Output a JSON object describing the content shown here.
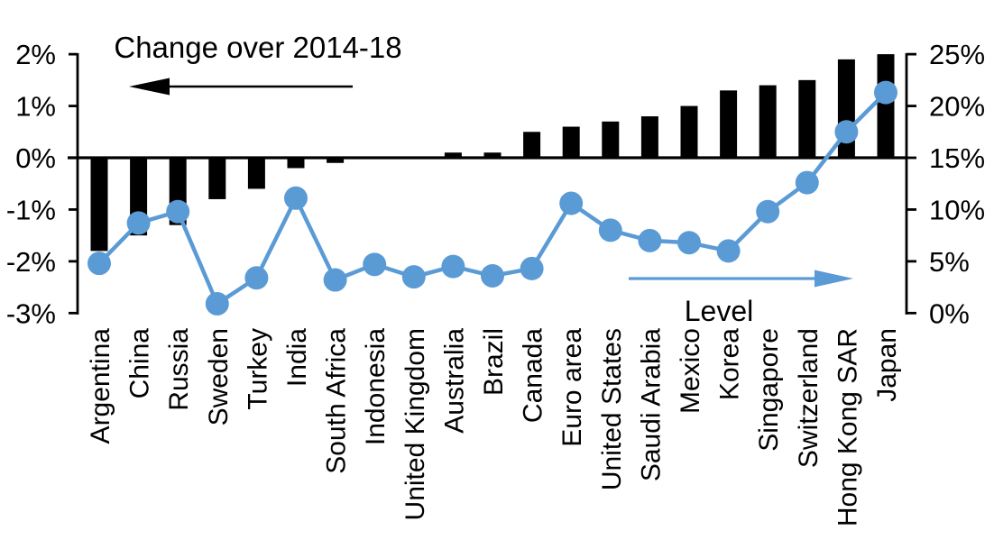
{
  "chart_data": {
    "type": "bar_line_combo",
    "title": "",
    "categories": [
      "Argentina",
      "China",
      "Russia",
      "Sweden",
      "Turkey",
      "India",
      "South Africa",
      "Indonesia",
      "United Kingdom",
      "Australia",
      "Brazil",
      "Canada",
      "Euro area",
      "United States",
      "Saudi Arabia",
      "Mexico",
      "Korea",
      "Singapore",
      "Switzerland",
      "Hong Kong SAR",
      "Japan"
    ],
    "series": [
      {
        "name": "Change over 2014-18",
        "type": "bar",
        "axis": "left",
        "color": "#000000",
        "unit": "%",
        "values": [
          -1.8,
          -1.5,
          -1.3,
          -0.8,
          -0.6,
          -0.2,
          -0.1,
          0,
          0,
          0.1,
          0.1,
          0.5,
          0.6,
          0.7,
          0.8,
          1.0,
          1.3,
          1.4,
          1.5,
          1.9,
          2.0
        ]
      },
      {
        "name": "Level",
        "type": "line",
        "axis": "right",
        "color": "#5B9BD5",
        "unit": "%",
        "marker": "circle",
        "values": [
          4.8,
          8.7,
          9.8,
          0.9,
          3.4,
          11.1,
          3.2,
          4.7,
          3.5,
          4.5,
          3.6,
          4.3,
          10.6,
          8.0,
          7.0,
          6.8,
          6.0,
          9.8,
          12.6,
          17.5,
          21.3
        ]
      }
    ],
    "left_axis": {
      "ticks": [
        "2%",
        "1%",
        "0%",
        "-1%",
        "-2%",
        "-3%"
      ],
      "tick_values": [
        2,
        1,
        0,
        -1,
        -2,
        -3
      ],
      "min": -3,
      "max": 2,
      "unit": "%"
    },
    "right_axis": {
      "ticks": [
        "25%",
        "20%",
        "15%",
        "10%",
        "5%",
        "0%"
      ],
      "tick_values": [
        25,
        20,
        15,
        10,
        5,
        0
      ],
      "min": 0,
      "max": 25,
      "unit": "%"
    },
    "annotations": [
      {
        "text": "Change over 2014-18",
        "arrow_direction": "left",
        "arrow_color": "#000000",
        "text_color": "#000000"
      },
      {
        "text": "Level",
        "arrow_direction": "right",
        "arrow_color": "#5B9BD5",
        "text_color": "#000000"
      }
    ],
    "grid": false,
    "legend_position": "none",
    "colors": {
      "bar": "#000000",
      "line": "#5B9BD5",
      "axis": "#000000",
      "background": "#ffffff"
    }
  }
}
